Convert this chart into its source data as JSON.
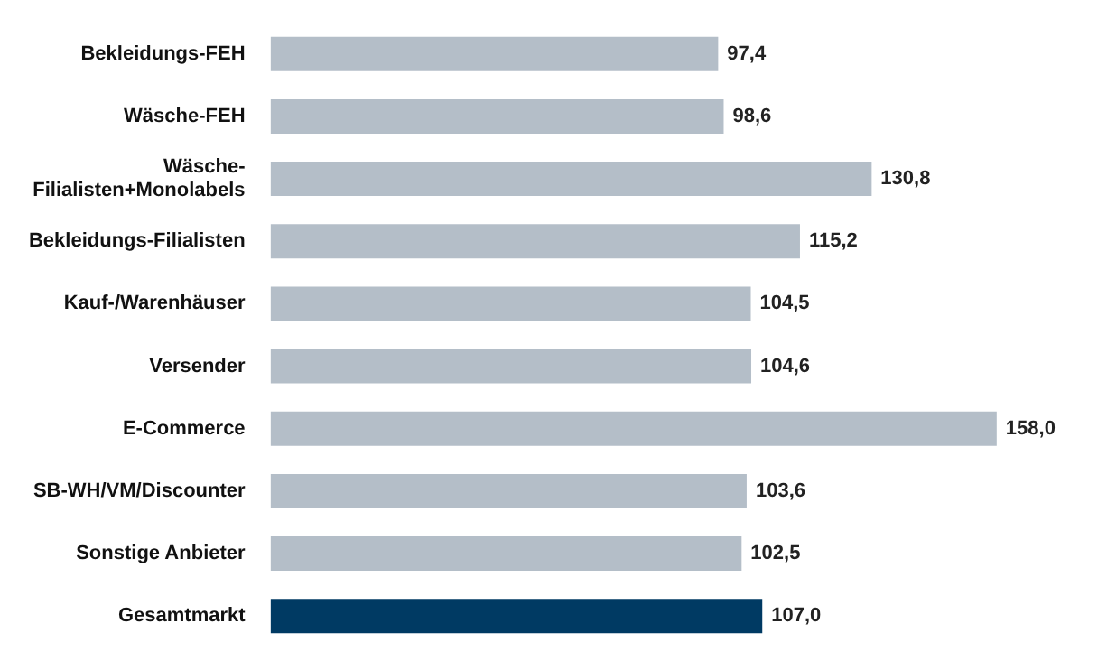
{
  "chart_data": {
    "type": "bar",
    "orientation": "horizontal",
    "categories": [
      "Bekleidungs-FEH",
      "Wäsche-FEH",
      "Wäsche-Filialisten+Monolabels",
      "Bekleidungs-Filialisten",
      "Kauf-/Warenhäuser",
      "Versender",
      "E-Commerce",
      "SB-WH/VM/Discounter",
      "Sonstige Anbieter",
      "Gesamtmarkt"
    ],
    "values": [
      97.4,
      98.6,
      130.8,
      115.2,
      104.5,
      104.6,
      158.0,
      103.6,
      102.5,
      107.0
    ],
    "value_labels": [
      "97,4",
      "98,6",
      "130,8",
      "115,2",
      "104,5",
      "104,6",
      "158,0",
      "103,6",
      "102,5",
      "107,0"
    ],
    "colors": [
      "#b4bec8",
      "#b4bec8",
      "#b4bec8",
      "#b4bec8",
      "#b4bec8",
      "#b4bec8",
      "#b4bec8",
      "#b4bec8",
      "#b4bec8",
      "#003a63"
    ],
    "tick_labels": "y"
  }
}
